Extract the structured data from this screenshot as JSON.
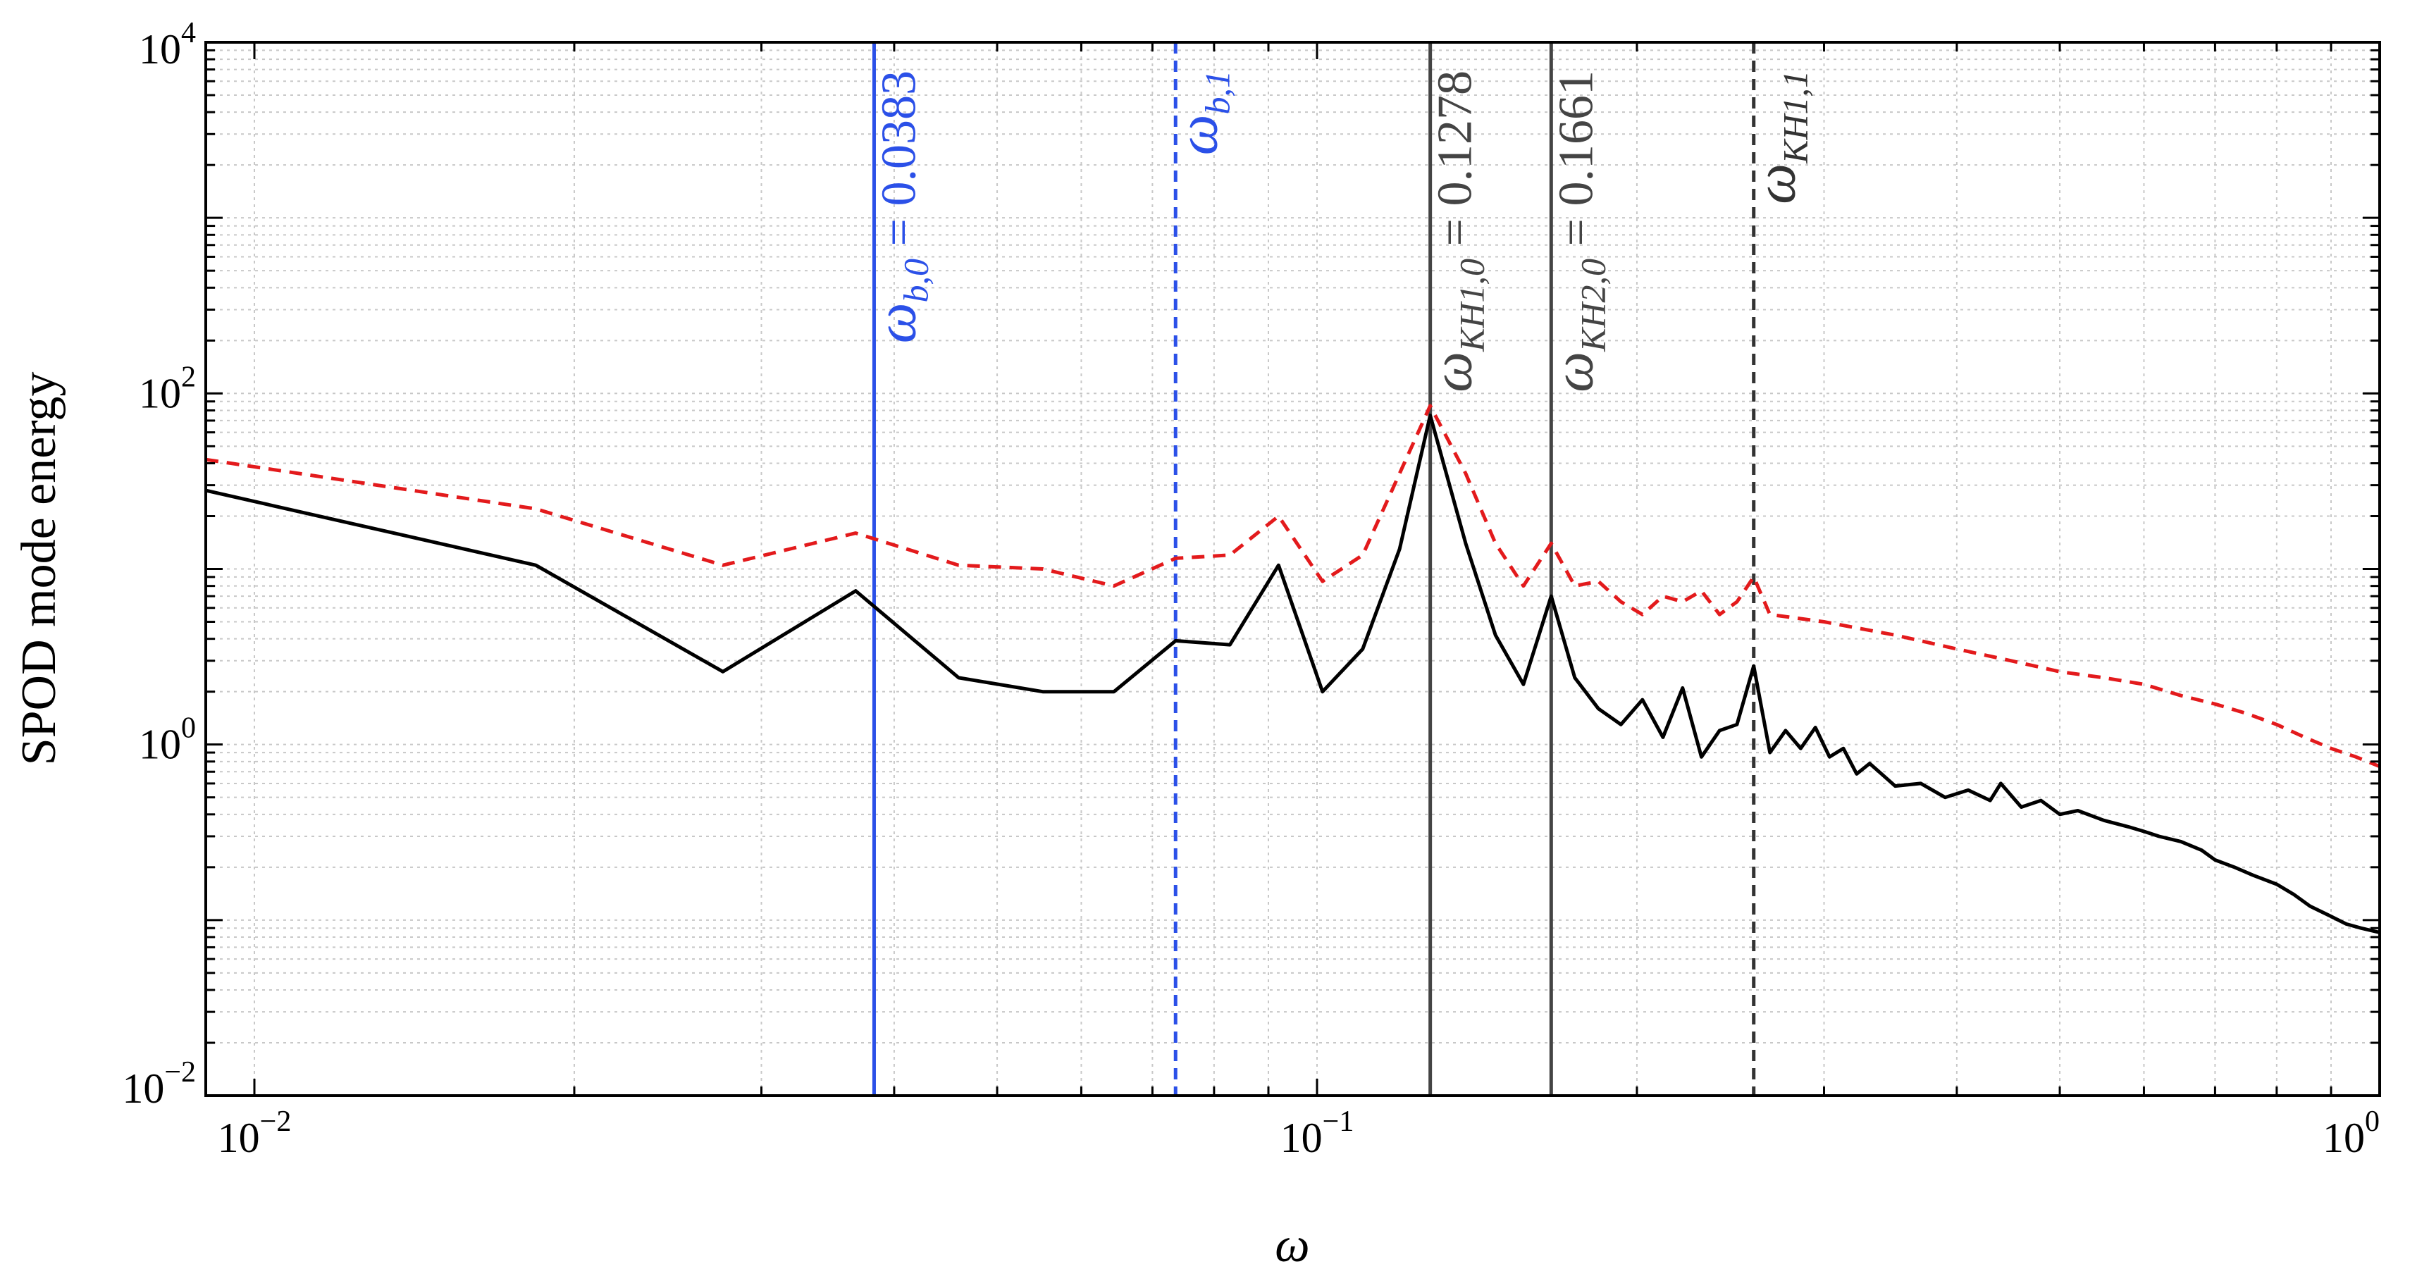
{
  "chart_data": {
    "type": "line",
    "xlabel": "ω",
    "ylabel": "SPOD mode energy",
    "xscale": "log",
    "yscale": "log",
    "xlim": [
      0.009,
      1.0
    ],
    "ylim": [
      0.01,
      10000
    ],
    "grid": true,
    "x_ticks": [
      {
        "value": 0.01,
        "base": "10",
        "exp": "−2"
      },
      {
        "value": 0.1,
        "base": "10",
        "exp": "−1"
      },
      {
        "value": 1,
        "base": "10",
        "exp": "0"
      }
    ],
    "y_ticks": [
      {
        "value": 0.01,
        "base": "10",
        "exp": "−2"
      },
      {
        "value": 1,
        "base": "10",
        "exp": "0"
      },
      {
        "value": 100,
        "base": "10",
        "exp": "2"
      },
      {
        "value": 10000,
        "base": "10",
        "exp": "4"
      }
    ],
    "series": [
      {
        "color": "#000000",
        "dash": "solid",
        "points": [
          [
            0.009,
            28
          ],
          [
            0.0184,
            10.5
          ],
          [
            0.0276,
            2.6
          ],
          [
            0.0368,
            7.5
          ],
          [
            0.046,
            2.4
          ],
          [
            0.0552,
            2.0
          ],
          [
            0.0644,
            2.0
          ],
          [
            0.0736,
            3.9
          ],
          [
            0.0828,
            3.7
          ],
          [
            0.092,
            10.5
          ],
          [
            0.1012,
            2.0
          ],
          [
            0.1104,
            3.5
          ],
          [
            0.1196,
            13
          ],
          [
            0.1278,
            75
          ],
          [
            0.138,
            14
          ],
          [
            0.1472,
            4.2
          ],
          [
            0.1564,
            2.2
          ],
          [
            0.1661,
            7.0
          ],
          [
            0.1748,
            2.4
          ],
          [
            0.184,
            1.6
          ],
          [
            0.1932,
            1.3
          ],
          [
            0.2024,
            1.8
          ],
          [
            0.2116,
            1.1
          ],
          [
            0.2208,
            2.1
          ],
          [
            0.23,
            0.85
          ],
          [
            0.2392,
            1.2
          ],
          [
            0.2484,
            1.3
          ],
          [
            0.2576,
            2.8
          ],
          [
            0.2668,
            0.9
          ],
          [
            0.276,
            1.2
          ],
          [
            0.2852,
            0.95
          ],
          [
            0.2944,
            1.25
          ],
          [
            0.3036,
            0.85
          ],
          [
            0.3128,
            0.95
          ],
          [
            0.322,
            0.68
          ],
          [
            0.3312,
            0.78
          ],
          [
            0.35,
            0.58
          ],
          [
            0.37,
            0.6
          ],
          [
            0.39,
            0.5
          ],
          [
            0.41,
            0.55
          ],
          [
            0.43,
            0.48
          ],
          [
            0.44,
            0.6
          ],
          [
            0.46,
            0.44
          ],
          [
            0.48,
            0.48
          ],
          [
            0.5,
            0.4
          ],
          [
            0.52,
            0.42
          ],
          [
            0.55,
            0.37
          ],
          [
            0.58,
            0.34
          ],
          [
            0.6,
            0.32
          ],
          [
            0.62,
            0.3
          ],
          [
            0.65,
            0.28
          ],
          [
            0.68,
            0.25
          ],
          [
            0.7,
            0.22
          ],
          [
            0.73,
            0.2
          ],
          [
            0.76,
            0.18
          ],
          [
            0.8,
            0.16
          ],
          [
            0.83,
            0.14
          ],
          [
            0.86,
            0.12
          ],
          [
            0.9,
            0.105
          ],
          [
            0.93,
            0.095
          ],
          [
            0.96,
            0.09
          ],
          [
            1.0,
            0.085
          ]
        ]
      },
      {
        "color": "#e31a1c",
        "dash": "dashed",
        "points": [
          [
            0.009,
            42
          ],
          [
            0.0184,
            22
          ],
          [
            0.0276,
            10.5
          ],
          [
            0.0368,
            16
          ],
          [
            0.046,
            10.5
          ],
          [
            0.0552,
            10
          ],
          [
            0.0644,
            8
          ],
          [
            0.0736,
            11.5
          ],
          [
            0.0828,
            12
          ],
          [
            0.092,
            20
          ],
          [
            0.1012,
            8.5
          ],
          [
            0.1104,
            12
          ],
          [
            0.1196,
            35
          ],
          [
            0.1278,
            85
          ],
          [
            0.138,
            35
          ],
          [
            0.1472,
            14
          ],
          [
            0.1564,
            8
          ],
          [
            0.1661,
            14
          ],
          [
            0.1748,
            8
          ],
          [
            0.184,
            8.5
          ],
          [
            0.1932,
            6.5
          ],
          [
            0.2024,
            5.5
          ],
          [
            0.2116,
            7
          ],
          [
            0.2208,
            6.5
          ],
          [
            0.23,
            7.5
          ],
          [
            0.2392,
            5.5
          ],
          [
            0.2484,
            6.5
          ],
          [
            0.2576,
            9
          ],
          [
            0.2668,
            5.5
          ],
          [
            0.3,
            5
          ],
          [
            0.35,
            4.2
          ],
          [
            0.4,
            3.5
          ],
          [
            0.45,
            3.0
          ],
          [
            0.5,
            2.6
          ],
          [
            0.55,
            2.4
          ],
          [
            0.6,
            2.2
          ],
          [
            0.65,
            1.9
          ],
          [
            0.7,
            1.7
          ],
          [
            0.75,
            1.5
          ],
          [
            0.8,
            1.3
          ],
          [
            0.85,
            1.1
          ],
          [
            0.9,
            0.95
          ],
          [
            0.95,
            0.85
          ],
          [
            1.0,
            0.75
          ]
        ]
      }
    ],
    "vertical_lines": [
      {
        "x": 0.0383,
        "color": "#2b50e8",
        "dash": "solid",
        "label_symbol": "ω",
        "label_sub": "b,0",
        "label_value": " = 0.0383"
      },
      {
        "x": 0.0736,
        "color": "#2b50e8",
        "dash": "dashed",
        "label_symbol": "ω",
        "label_sub": "b,1",
        "label_value": ""
      },
      {
        "x": 0.1278,
        "color": "#444444",
        "dash": "solid",
        "label_symbol": "ω",
        "label_sub": "KH1,0",
        "label_value": " = 0.1278"
      },
      {
        "x": 0.1661,
        "color": "#444444",
        "dash": "solid",
        "label_symbol": "ω",
        "label_sub": "KH2,0",
        "label_value": " = 0.1661"
      },
      {
        "x": 0.2576,
        "color": "#333333",
        "dash": "dashed",
        "label_symbol": "ω",
        "label_sub": "KH1,1",
        "label_value": ""
      }
    ]
  }
}
